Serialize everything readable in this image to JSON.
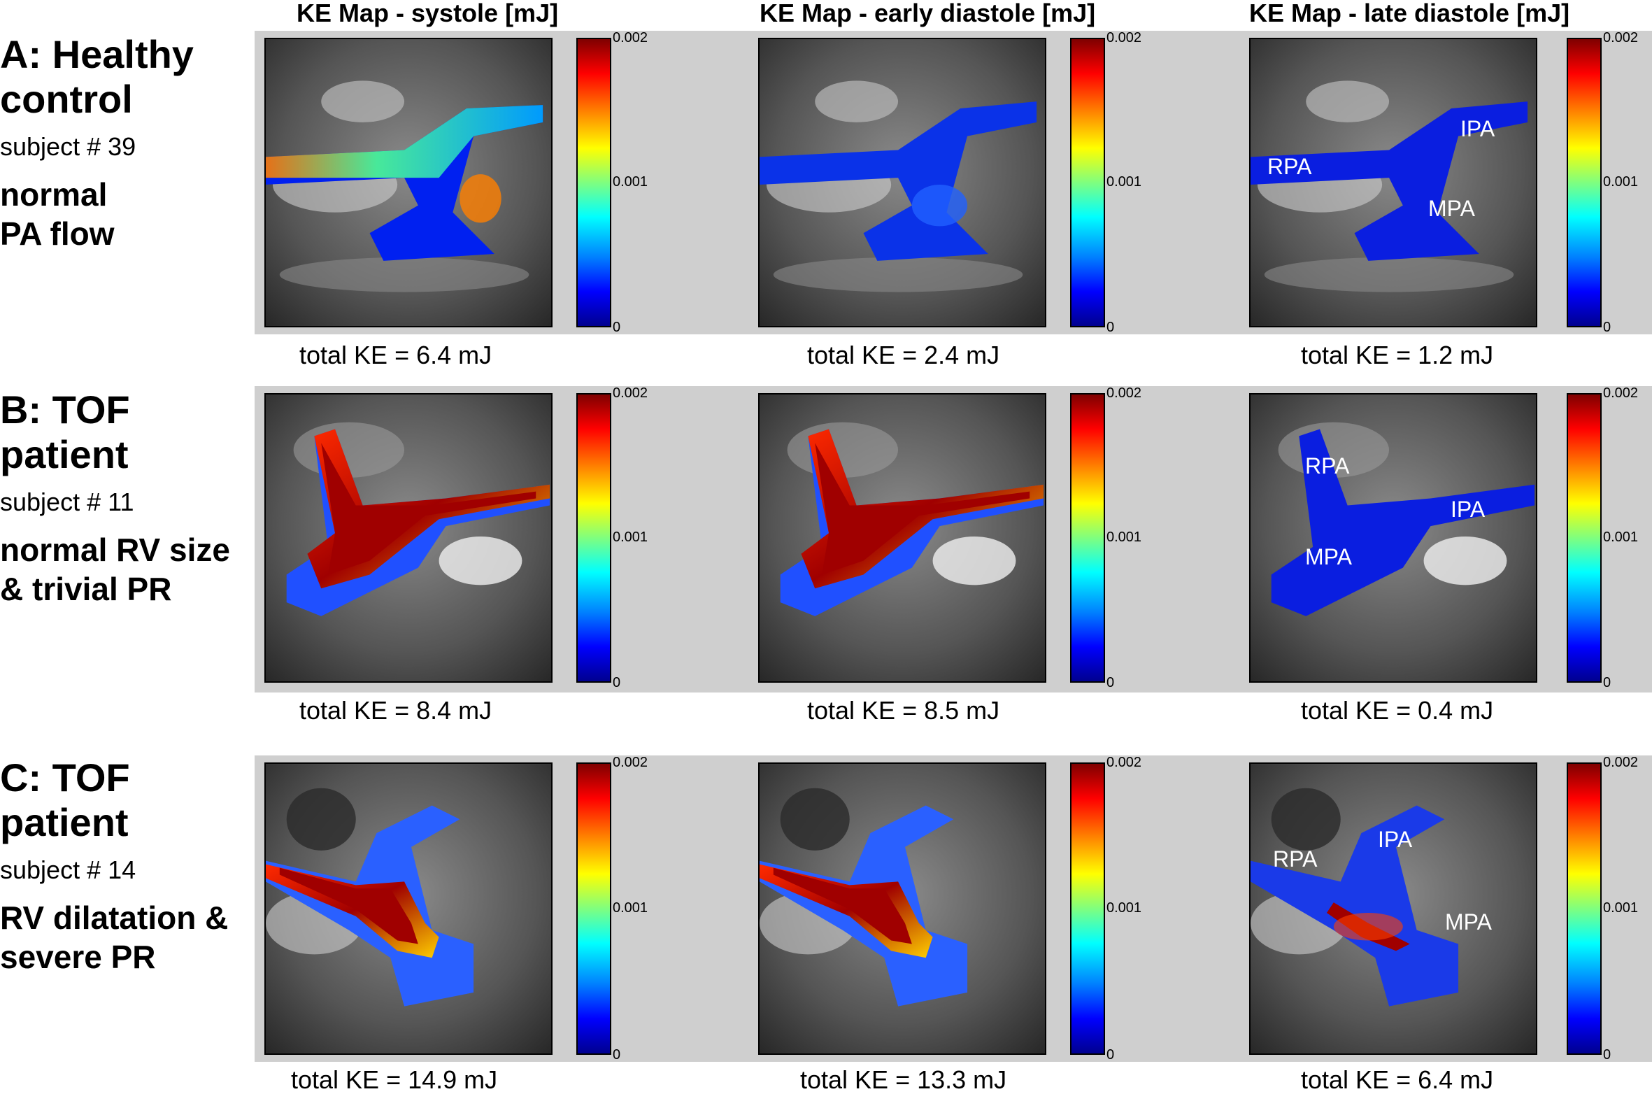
{
  "columns": [
    {
      "title": "KE Map - systole [mJ]"
    },
    {
      "title": "KE Map - early diastole [mJ]"
    },
    {
      "title": "KE Map - late diastole [mJ]"
    }
  ],
  "colorbar": {
    "max_label": "0.002",
    "mid_label": "0.001",
    "min_label": "0",
    "colormap": "jet",
    "range": [
      0,
      0.002
    ]
  },
  "rows": [
    {
      "letter": "A: Healthy control",
      "subject": "subject # 39",
      "description": "normal PA flow",
      "totals": [
        "total KE = 6.4 mJ",
        "total KE = 2.4 mJ",
        "total KE = 1.2 mJ"
      ],
      "vessel_labels": [
        "RPA",
        "IPA",
        "MPA"
      ]
    },
    {
      "letter": "B: TOF patient",
      "subject": "subject # 11",
      "description": "normal RV size & trivial PR",
      "totals": [
        "total KE = 8.4 mJ",
        "total KE = 8.5 mJ",
        "total KE = 0.4 mJ"
      ],
      "vessel_labels": [
        "RPA",
        "IPA",
        "MPA"
      ]
    },
    {
      "letter": "C: TOF patient",
      "subject": "subject # 14",
      "description": "RV dilatation & severe PR",
      "totals": [
        "total KE = 14.9 mJ",
        "total KE = 13.3 mJ",
        "total KE = 6.4 mJ"
      ],
      "vessel_labels": [
        "RPA",
        "IPA",
        "MPA"
      ]
    }
  ]
}
